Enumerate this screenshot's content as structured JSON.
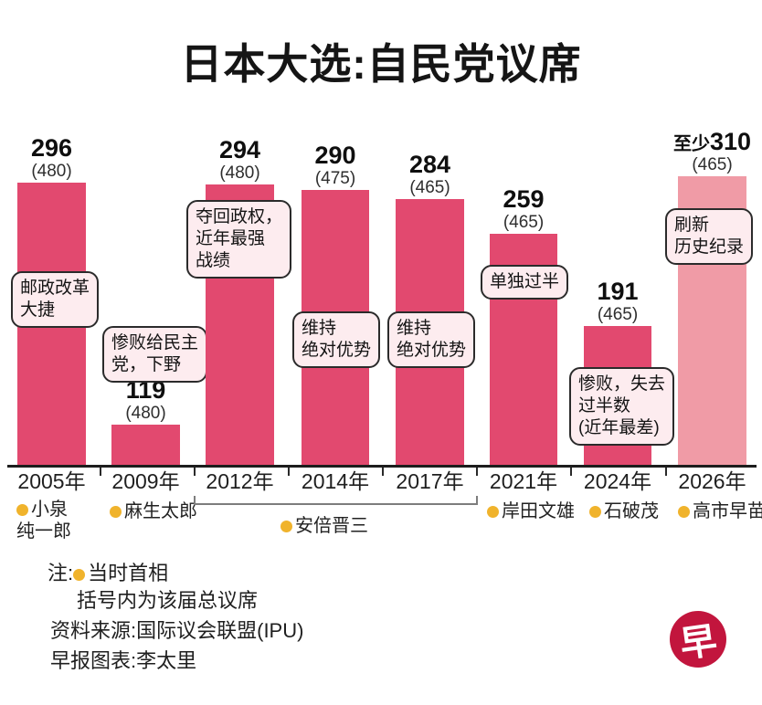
{
  "title": "日本大选:自民党议席",
  "chart_data": {
    "type": "bar",
    "title": "日本大选:自民党议席",
    "categories": [
      "2005年",
      "2009年",
      "2012年",
      "2014年",
      "2017年",
      "2021年",
      "2024年",
      "2026年"
    ],
    "values": [
      296,
      119,
      294,
      290,
      284,
      259,
      191,
      310
    ],
    "value_labels": [
      "296",
      "119",
      "294",
      "290",
      "284",
      "259",
      "191",
      "310"
    ],
    "value_prefixes": [
      "",
      "",
      "",
      "",
      "",
      "",
      "",
      "至少"
    ],
    "chamber_totals": [
      "(480)",
      "(480)",
      "(480)",
      "(475)",
      "(465)",
      "(465)",
      "(465)",
      "(465)"
    ],
    "bar_kinds": [
      "actual",
      "actual",
      "actual",
      "actual",
      "actual",
      "actual",
      "actual",
      "projected"
    ],
    "annotations": [
      [
        "邮政改革",
        "大捷"
      ],
      [
        "惨败给民主",
        "党，下野"
      ],
      [
        "夺回政权，",
        "近年最强",
        "战绩"
      ],
      [
        "维持",
        "绝对优势"
      ],
      [
        "维持",
        "绝对优势"
      ],
      [
        "单独过半"
      ],
      [
        "惨败，失去",
        "过半数",
        "(近年最差)"
      ],
      [
        "刷新",
        "历史纪录"
      ]
    ],
    "prime_ministers": [
      {
        "lines": [
          "小泉",
          "纯一郎"
        ]
      },
      {
        "lines": [
          "麻生太郎"
        ]
      },
      {
        "lines": [
          "安倍晋三"
        ]
      },
      {
        "lines": [
          "岸田文雄"
        ]
      },
      {
        "lines": [
          "石破茂"
        ]
      },
      {
        "lines": [
          "高市早苗"
        ]
      }
    ],
    "ylim": [
      0,
      480
    ],
    "grid": false,
    "legend": null
  },
  "colors": {
    "bar": "#e2496f",
    "bar_projected": "#f09ba6",
    "bubble_fill": "#fdecef",
    "bubble_border": "#2b2b2b",
    "bullet_gold": "#f0b32c",
    "axis": "#1d1d1d",
    "logo_red": "#c2153d"
  },
  "notes": {
    "note_prefix": "注:",
    "note_bullet_label": "当时首相",
    "note_line2": "括号内为该届总议席",
    "source": "资料来源:国际议会联盟(IPU)",
    "credit": "早报图表:李太里"
  },
  "logo": {
    "glyph": "早"
  }
}
